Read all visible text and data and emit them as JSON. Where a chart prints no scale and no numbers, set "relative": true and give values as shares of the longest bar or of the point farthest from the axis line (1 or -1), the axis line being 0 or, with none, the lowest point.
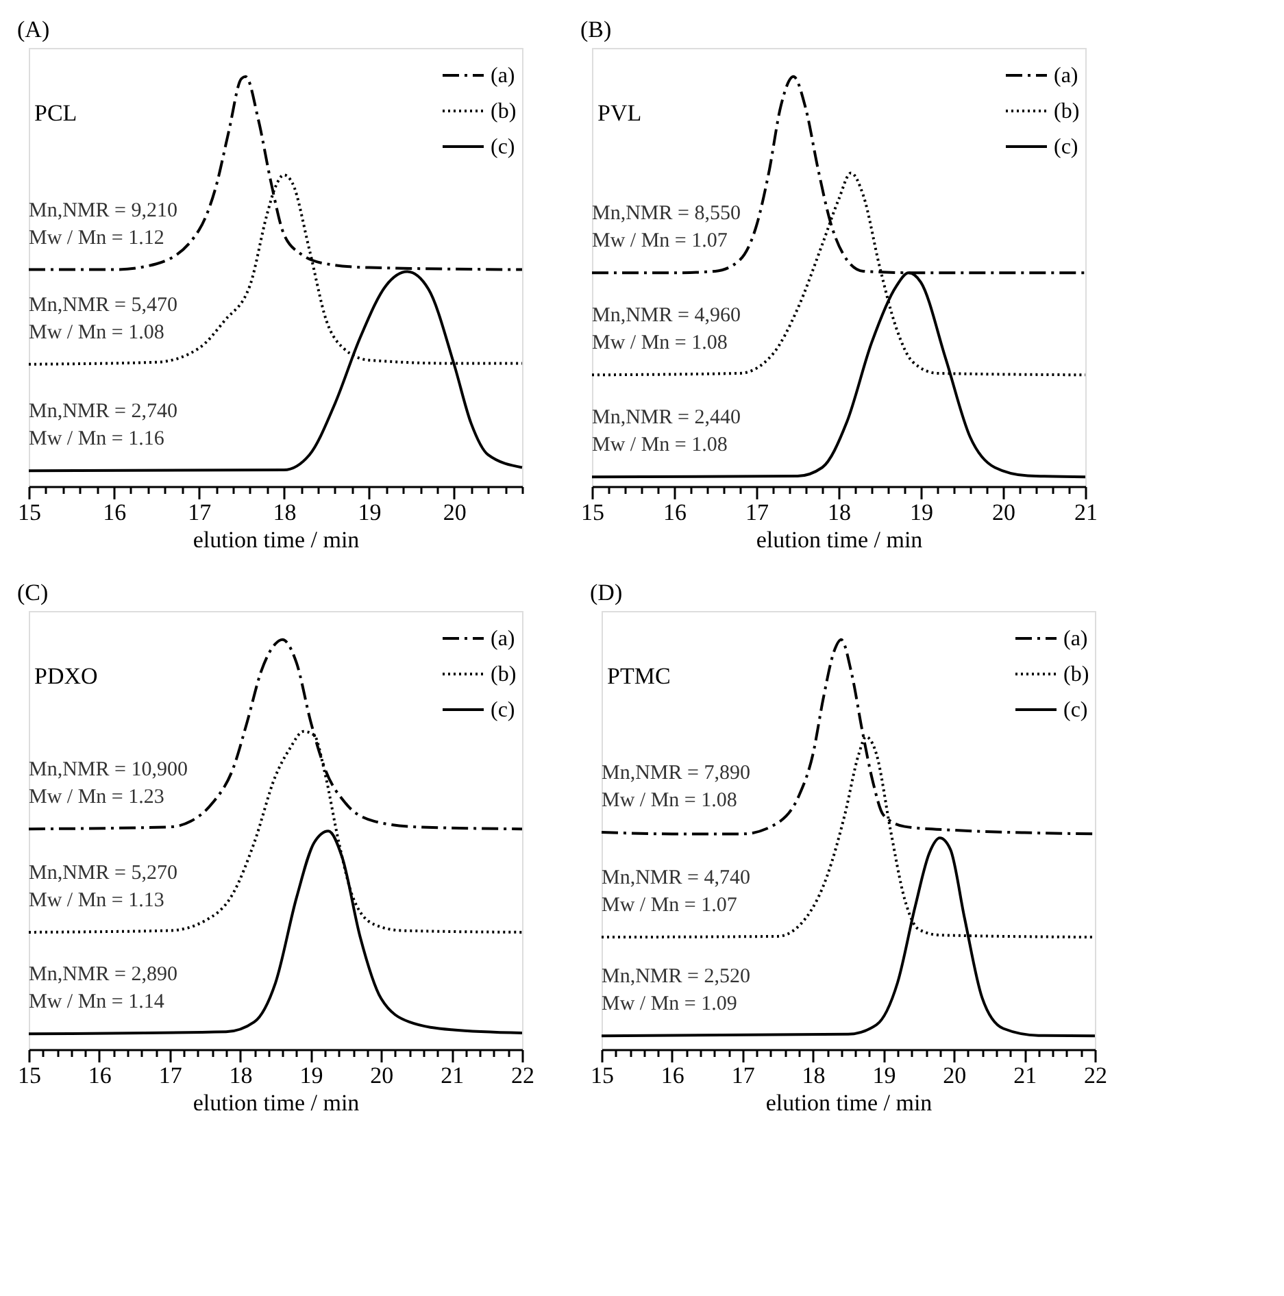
{
  "chart_data": [
    {
      "type": "line",
      "title": "(A)",
      "xlabel": "elution time / min",
      "relative": true,
      "grid": false,
      "legend": "top right",
      "xlim": [
        15,
        20.8
      ],
      "xticks": [
        15,
        {
          "value": 15.2,
          "label": null
        },
        {
          "value": 15.4,
          "label": null
        },
        {
          "value": 15.6,
          "label": null
        },
        {
          "value": 15.8,
          "label": null
        },
        16,
        {
          "value": 16.2,
          "label": null
        },
        {
          "value": 16.4,
          "label": null
        },
        {
          "value": 16.6,
          "label": null
        },
        {
          "value": 16.8,
          "label": null
        },
        17,
        {
          "value": 17.2,
          "label": null
        },
        {
          "value": 17.4,
          "label": null
        },
        {
          "value": 17.6,
          "label": null
        },
        {
          "value": 17.8,
          "label": null
        },
        18,
        {
          "value": 18.2,
          "label": null
        },
        {
          "value": 18.4,
          "label": null
        },
        {
          "value": 18.6,
          "label": null
        },
        {
          "value": 18.8,
          "label": null
        },
        19,
        {
          "value": 19.2,
          "label": null
        },
        {
          "value": 19.4,
          "label": null
        },
        {
          "value": 19.6,
          "label": null
        },
        {
          "value": 19.8,
          "label": null
        },
        20,
        {
          "value": 20.2,
          "label": null
        },
        {
          "value": 20.4,
          "label": null
        },
        {
          "value": 20.6,
          "label": null
        },
        {
          "value": 20.8,
          "label": null
        }
      ],
      "annotations": [
        "PCL",
        "Mn,NMR = 9,210",
        "Mw / Mn = 1.12",
        "Mn,NMR = 5,470",
        "Mw / Mn = 1.08",
        "Mn,NMR = 2,740",
        "Mw / Mn = 1.16"
      ],
      "series": [
        {
          "name": "(a)",
          "color": "#000000",
          "line_style": "dashdot",
          "x": [
            15,
            16,
            16.5,
            17,
            17.2,
            17.35,
            17.5,
            17.55,
            17.7,
            17.85,
            18,
            18.2,
            18.5,
            19,
            20.8
          ],
          "values": [
            0.529,
            0.529,
            0.543,
            0.625,
            0.731,
            0.865,
            0.995,
            1.0,
            0.894,
            0.74,
            0.615,
            0.567,
            0.543,
            0.534,
            0.529
          ]
        },
        {
          "name": "(b)",
          "color": "#000000",
          "line_style": "dotted",
          "x": [
            15,
            16.5,
            17,
            17.3,
            17.6,
            17.8,
            17.9,
            18,
            18.1,
            18.3,
            18.5,
            18.7,
            19,
            20,
            20.8
          ],
          "values": [
            0.298,
            0.303,
            0.337,
            0.404,
            0.49,
            0.663,
            0.731,
            0.76,
            0.74,
            0.577,
            0.404,
            0.337,
            0.308,
            0.3,
            0.3
          ]
        },
        {
          "name": "(c)",
          "color": "#000000",
          "line_style": "solid",
          "x": [
            15,
            18,
            18.3,
            18.6,
            18.9,
            19.2,
            19.45,
            19.7,
            20,
            20.2,
            20.4,
            20.8
          ],
          "values": [
            0.038,
            0.04,
            0.077,
            0.202,
            0.365,
            0.49,
            0.524,
            0.481,
            0.298,
            0.154,
            0.077,
            0.046
          ]
        }
      ]
    },
    {
      "type": "line",
      "title": "(B)",
      "xlabel": "elution time / min",
      "relative": true,
      "grid": false,
      "legend": "top right",
      "xlim": [
        15,
        21
      ],
      "xticks": [
        15,
        {
          "value": 15.2,
          "label": null
        },
        {
          "value": 15.4,
          "label": null
        },
        {
          "value": 15.6,
          "label": null
        },
        {
          "value": 15.8,
          "label": null
        },
        16,
        {
          "value": 16.2,
          "label": null
        },
        {
          "value": 16.4,
          "label": null
        },
        {
          "value": 16.6,
          "label": null
        },
        {
          "value": 16.8,
          "label": null
        },
        17,
        {
          "value": 17.2,
          "label": null
        },
        {
          "value": 17.4,
          "label": null
        },
        {
          "value": 17.6,
          "label": null
        },
        {
          "value": 17.8,
          "label": null
        },
        18,
        {
          "value": 18.2,
          "label": null
        },
        {
          "value": 18.4,
          "label": null
        },
        {
          "value": 18.6,
          "label": null
        },
        {
          "value": 18.8,
          "label": null
        },
        19,
        {
          "value": 19.2,
          "label": null
        },
        {
          "value": 19.4,
          "label": null
        },
        {
          "value": 19.6,
          "label": null
        },
        {
          "value": 19.8,
          "label": null
        },
        20,
        {
          "value": 20.2,
          "label": null
        },
        {
          "value": 20.4,
          "label": null
        },
        {
          "value": 20.6,
          "label": null
        },
        {
          "value": 20.8,
          "label": null
        },
        21
      ],
      "annotations": [
        "PVL",
        "Mn,NMR = 8,550",
        "Mw / Mn = 1.07",
        "Mn,NMR = 4,960",
        "Mw / Mn = 1.08",
        "Mn,NMR = 2,440",
        "Mw / Mn = 1.08"
      ],
      "series": [
        {
          "name": "(a)",
          "color": "#000000",
          "line_style": "dashdot",
          "x": [
            15,
            16,
            16.5,
            16.8,
            17,
            17.15,
            17.3,
            17.45,
            17.6,
            17.75,
            17.9,
            18.1,
            18.3,
            19,
            21
          ],
          "values": [
            0.521,
            0.521,
            0.525,
            0.553,
            0.636,
            0.765,
            0.931,
            1.0,
            0.922,
            0.774,
            0.645,
            0.553,
            0.525,
            0.521,
            0.521
          ]
        },
        {
          "name": "(b)",
          "color": "#000000",
          "line_style": "dotted",
          "x": [
            15,
            16.8,
            17.2,
            17.5,
            17.8,
            18,
            18.15,
            18.3,
            18.5,
            18.7,
            18.9,
            19.2,
            21
          ],
          "values": [
            0.272,
            0.276,
            0.323,
            0.433,
            0.59,
            0.7,
            0.765,
            0.71,
            0.535,
            0.387,
            0.304,
            0.276,
            0.272
          ]
        },
        {
          "name": "(c)",
          "color": "#000000",
          "line_style": "solid",
          "x": [
            15,
            17.5,
            17.8,
            18.1,
            18.4,
            18.7,
            18.85,
            19,
            19.3,
            19.6,
            19.9,
            20.3,
            21
          ],
          "values": [
            0.023,
            0.025,
            0.046,
            0.157,
            0.35,
            0.488,
            0.521,
            0.498,
            0.313,
            0.12,
            0.046,
            0.026,
            0.023
          ]
        }
      ]
    },
    {
      "type": "line",
      "title": "(C)",
      "xlabel": "elution time / min",
      "relative": true,
      "grid": false,
      "legend": "top right",
      "xlim": [
        15,
        22
      ],
      "xticks": [
        15,
        {
          "value": 15.2,
          "label": null
        },
        {
          "value": 15.4,
          "label": null
        },
        {
          "value": 15.6,
          "label": null
        },
        {
          "value": 15.8,
          "label": null
        },
        16,
        {
          "value": 16.2,
          "label": null
        },
        {
          "value": 16.4,
          "label": null
        },
        {
          "value": 16.6,
          "label": null
        },
        {
          "value": 16.8,
          "label": null
        },
        17,
        {
          "value": 17.2,
          "label": null
        },
        {
          "value": 17.4,
          "label": null
        },
        {
          "value": 17.6,
          "label": null
        },
        {
          "value": 17.8,
          "label": null
        },
        18,
        {
          "value": 18.2,
          "label": null
        },
        {
          "value": 18.4,
          "label": null
        },
        {
          "value": 18.6,
          "label": null
        },
        {
          "value": 18.8,
          "label": null
        },
        19,
        {
          "value": 19.2,
          "label": null
        },
        {
          "value": 19.4,
          "label": null
        },
        {
          "value": 19.6,
          "label": null
        },
        {
          "value": 19.8,
          "label": null
        },
        20,
        {
          "value": 20.2,
          "label": null
        },
        {
          "value": 20.4,
          "label": null
        },
        {
          "value": 20.6,
          "label": null
        },
        {
          "value": 20.8,
          "label": null
        },
        21,
        {
          "value": 21.2,
          "label": null
        },
        {
          "value": 21.4,
          "label": null
        },
        {
          "value": 21.6,
          "label": null
        },
        {
          "value": 21.8,
          "label": null
        },
        22
      ],
      "annotations": [
        "PDXO",
        "Mn,NMR = 10,900",
        "Mw / Mn = 1.23",
        "Mn,NMR = 5,270",
        "Mw / Mn = 1.13",
        "Mn,NMR = 2,890",
        "Mw / Mn = 1.14"
      ],
      "series": [
        {
          "name": "(a)",
          "color": "#000000",
          "line_style": "dashdot",
          "x": [
            15,
            17,
            17.3,
            17.6,
            17.9,
            18.1,
            18.3,
            18.5,
            18.6,
            18.8,
            19,
            19.2,
            19.5,
            19.9,
            20.5,
            22
          ],
          "values": [
            0.538,
            0.543,
            0.557,
            0.6,
            0.686,
            0.8,
            0.924,
            0.99,
            1.0,
            0.943,
            0.8,
            0.686,
            0.6,
            0.557,
            0.543,
            0.538
          ]
        },
        {
          "name": "(b)",
          "color": "#000000",
          "line_style": "dotted",
          "x": [
            15,
            17,
            17.5,
            17.9,
            18.2,
            18.5,
            18.7,
            18.9,
            19.05,
            19.2,
            19.4,
            19.6,
            19.9,
            20.3,
            22
          ],
          "values": [
            0.286,
            0.29,
            0.314,
            0.381,
            0.505,
            0.667,
            0.733,
            0.776,
            0.767,
            0.676,
            0.505,
            0.371,
            0.305,
            0.29,
            0.286
          ]
        },
        {
          "name": "(c)",
          "color": "#000000",
          "line_style": "solid",
          "x": [
            15,
            17.8,
            18.2,
            18.5,
            18.8,
            19.05,
            19.25,
            19.45,
            19.7,
            20,
            20.4,
            21,
            22
          ],
          "values": [
            0.038,
            0.043,
            0.067,
            0.162,
            0.371,
            0.505,
            0.533,
            0.467,
            0.276,
            0.124,
            0.067,
            0.048,
            0.04
          ]
        }
      ]
    },
    {
      "type": "line",
      "title": "(D)",
      "xlabel": "elution time / min",
      "relative": true,
      "grid": false,
      "legend": "top right",
      "xlim": [
        15,
        22
      ],
      "xticks": [
        15,
        {
          "value": 15.2,
          "label": null
        },
        {
          "value": 15.4,
          "label": null
        },
        {
          "value": 15.6,
          "label": null
        },
        {
          "value": 15.8,
          "label": null
        },
        16,
        {
          "value": 16.2,
          "label": null
        },
        {
          "value": 16.4,
          "label": null
        },
        {
          "value": 16.6,
          "label": null
        },
        {
          "value": 16.8,
          "label": null
        },
        17,
        {
          "value": 17.2,
          "label": null
        },
        {
          "value": 17.4,
          "label": null
        },
        {
          "value": 17.6,
          "label": null
        },
        {
          "value": 17.8,
          "label": null
        },
        18,
        {
          "value": 18.2,
          "label": null
        },
        {
          "value": 18.4,
          "label": null
        },
        {
          "value": 18.6,
          "label": null
        },
        {
          "value": 18.8,
          "label": null
        },
        19,
        {
          "value": 19.2,
          "label": null
        },
        {
          "value": 19.4,
          "label": null
        },
        {
          "value": 19.6,
          "label": null
        },
        {
          "value": 19.8,
          "label": null
        },
        20,
        {
          "value": 20.2,
          "label": null
        },
        {
          "value": 20.4,
          "label": null
        },
        {
          "value": 20.6,
          "label": null
        },
        {
          "value": 20.8,
          "label": null
        },
        21,
        {
          "value": 21.2,
          "label": null
        },
        {
          "value": 21.4,
          "label": null
        },
        {
          "value": 21.6,
          "label": null
        },
        {
          "value": 21.8,
          "label": null
        },
        22
      ],
      "annotations": [
        "PTMC",
        "Mn,NMR = 7,890",
        "Mw / Mn = 1.08",
        "Mn,NMR = 4,740",
        "Mw / Mn = 1.07",
        "Mn,NMR = 2,520",
        "Mw / Mn = 1.09"
      ],
      "series": [
        {
          "name": "(a)",
          "color": "#000000",
          "line_style": "dashdot",
          "x": [
            15,
            16,
            17,
            17.5,
            17.8,
            18,
            18.15,
            18.3,
            18.4,
            18.55,
            18.7,
            18.85,
            19,
            19.3,
            20,
            21,
            22
          ],
          "values": [
            0.53,
            0.526,
            0.526,
            0.553,
            0.619,
            0.721,
            0.86,
            0.972,
            1.0,
            0.916,
            0.777,
            0.653,
            0.572,
            0.544,
            0.535,
            0.529,
            0.526
          ]
        },
        {
          "name": "(b)",
          "color": "#000000",
          "line_style": "dotted",
          "x": [
            15,
            17.5,
            17.9,
            18.2,
            18.45,
            18.65,
            18.75,
            18.9,
            19.1,
            19.3,
            19.5,
            19.8,
            22
          ],
          "values": [
            0.274,
            0.276,
            0.321,
            0.423,
            0.572,
            0.721,
            0.763,
            0.721,
            0.535,
            0.367,
            0.293,
            0.279,
            0.274
          ]
        },
        {
          "name": "(c)",
          "color": "#000000",
          "line_style": "solid",
          "x": [
            15,
            18.5,
            18.9,
            19.2,
            19.45,
            19.65,
            19.8,
            19.95,
            20.15,
            20.4,
            20.7,
            21.2,
            22
          ],
          "values": [
            0.033,
            0.037,
            0.06,
            0.163,
            0.349,
            0.479,
            0.516,
            0.488,
            0.321,
            0.126,
            0.051,
            0.034,
            0.033
          ]
        }
      ]
    }
  ]
}
